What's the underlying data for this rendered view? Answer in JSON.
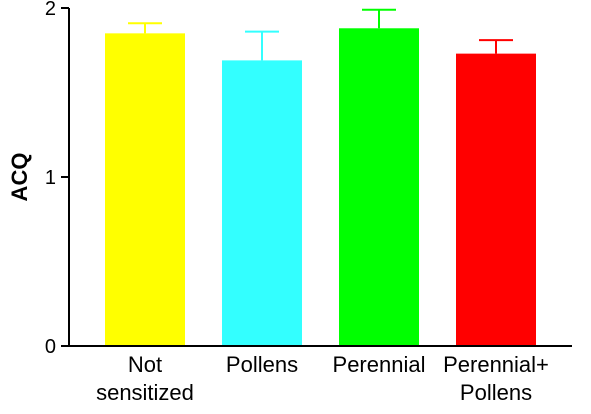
{
  "chart_data": {
    "type": "bar",
    "title": "",
    "xlabel": "",
    "ylabel": "ACQ",
    "ylim": [
      0,
      2
    ],
    "yticks": [
      0,
      1,
      2
    ],
    "grid": false,
    "categories": [
      [
        "Not",
        "sensitized"
      ],
      [
        "Pollens"
      ],
      [
        "Perennial"
      ],
      [
        "Perennial+",
        "Pollens"
      ]
    ],
    "values": [
      1.85,
      1.69,
      1.88,
      1.73
    ],
    "errors": [
      0.06,
      0.17,
      0.11,
      0.08
    ],
    "colors": [
      "#ffff00",
      "#33ffff",
      "#00ff00",
      "#ff0000"
    ]
  }
}
